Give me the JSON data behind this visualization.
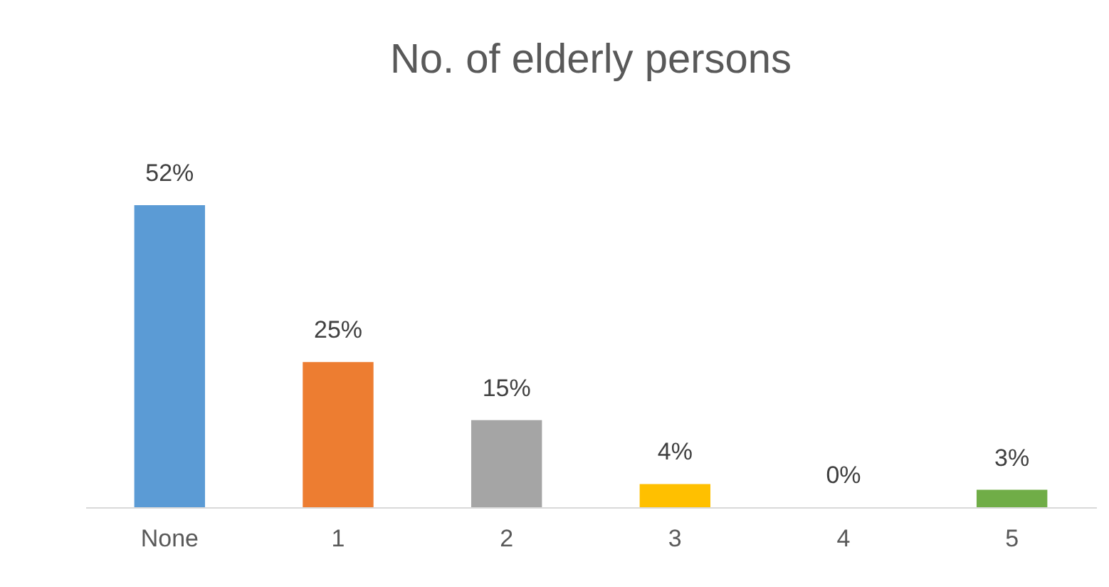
{
  "chart_data": {
    "type": "bar",
    "title": "No. of elderly persons",
    "categories": [
      "None",
      "1",
      "2",
      "3",
      "4",
      "5"
    ],
    "values": [
      52,
      25,
      15,
      4,
      0,
      3
    ],
    "colors": [
      "#5b9bd5",
      "#ed7d31",
      "#a5a5a5",
      "#ffc000",
      "#4472c4",
      "#70ad47"
    ],
    "value_labels": [
      "52%",
      "25%",
      "15%",
      "4%",
      "0%",
      "3%"
    ]
  }
}
